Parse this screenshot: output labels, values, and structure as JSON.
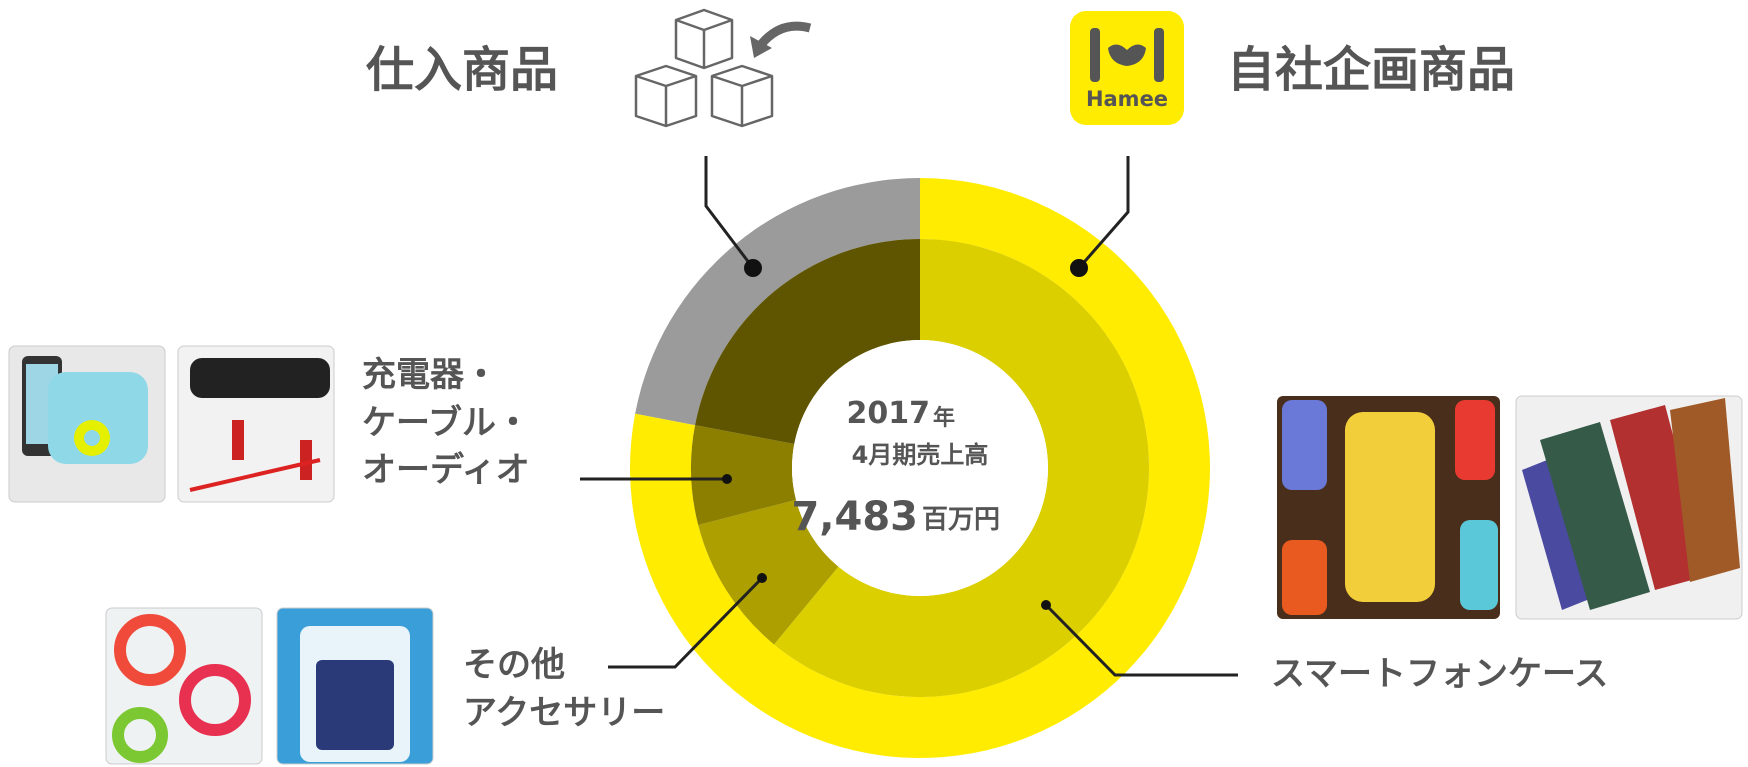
{
  "header": {
    "left_title": "仕入商品",
    "right_title": "自社企画商品",
    "logo_text": "Hamee"
  },
  "chart_data": {
    "type": "donut",
    "center": {
      "year": "2017",
      "year_unit": "年",
      "line2": "4月期売上高",
      "total": "7,483",
      "total_unit": "百万円"
    },
    "outer": {
      "categories": [
        "自社企画商品",
        "仕入商品"
      ],
      "values": [
        78,
        22
      ],
      "colors": [
        "#ffec00",
        "#9b9b9b"
      ]
    },
    "inner": {
      "categories": [
        "スマートフォンケース",
        "その他\nアクセサリー",
        "充電器・\nケーブル・\nオーディオ",
        null
      ],
      "values": [
        61,
        10,
        7,
        22
      ],
      "colors": [
        "#dccf00",
        "#ad9f00",
        "#8c7f00",
        "#5f5500"
      ]
    }
  }
}
